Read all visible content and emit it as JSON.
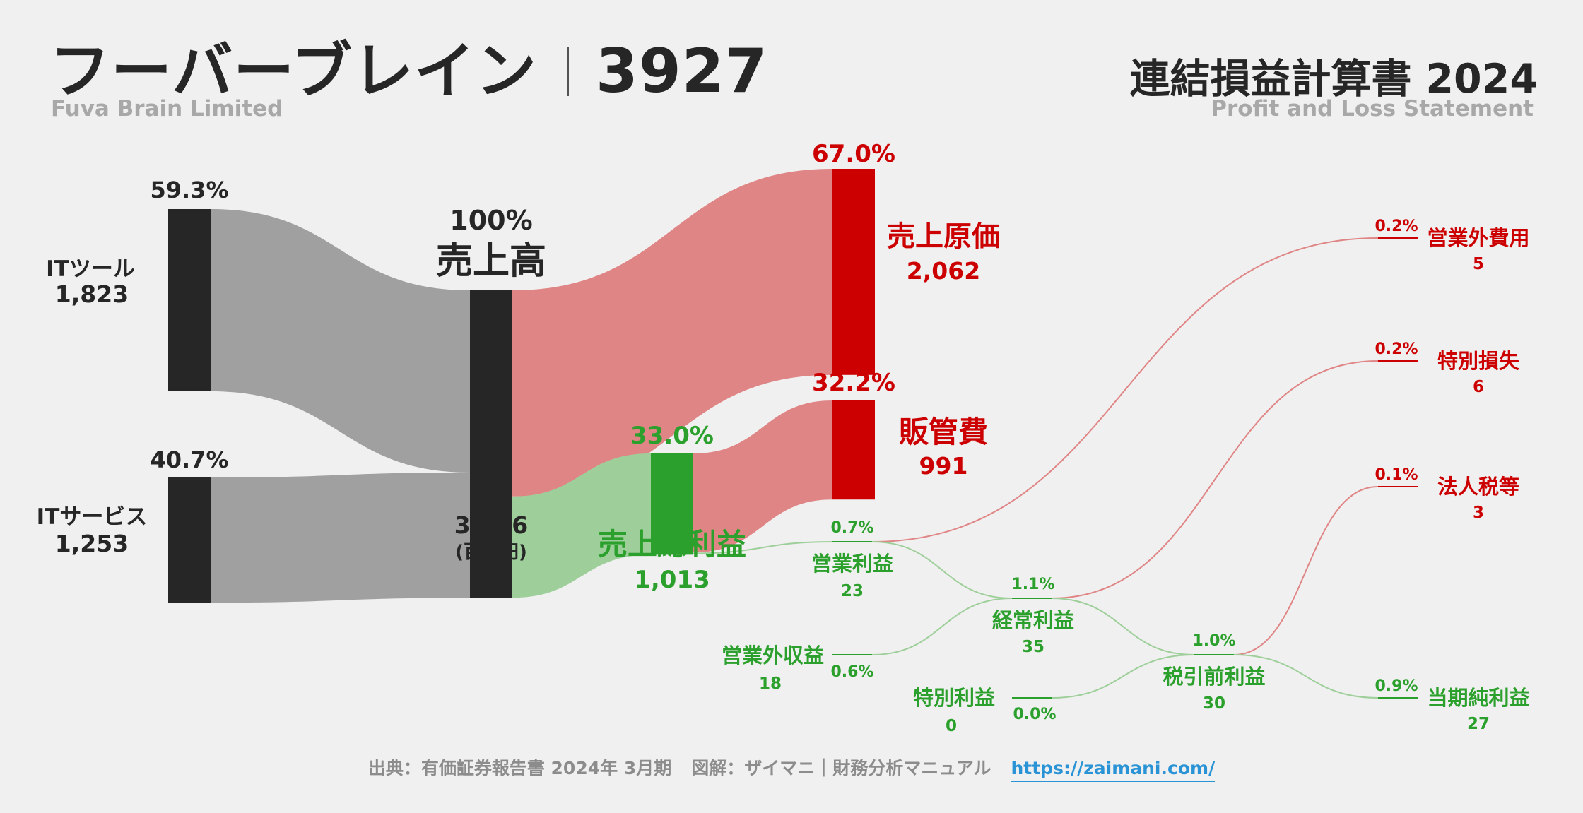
{
  "header": {
    "company": "フーバーブレイン",
    "code": "3927",
    "company_en": "Fuva Brain Limited",
    "statement": "連結損益計算書 2024",
    "statement_en": "Profit and Loss Statement"
  },
  "footer": {
    "source": "出典：有価証券報告書 2024年 3月期",
    "credit": "図解：ザイマニ｜財務分析マニュアル",
    "url": "https://zaimani.com/"
  },
  "colors": {
    "dark": "#262626",
    "gray_flow": "#a0a0a0",
    "red": "#cc0000",
    "red_flow": "#e08585",
    "green": "#2ca02c",
    "green_flow": "#9ecf9a",
    "muted": "#a8a8a8",
    "link": "#2a93d5"
  },
  "chart_data": {
    "type": "sankey",
    "unit": "(百万円)",
    "nodes": [
      {
        "id": "it_tools",
        "name": "ITツール",
        "value": 1823,
        "value_label": "1,823",
        "pct": "59.3%",
        "color": "dark"
      },
      {
        "id": "it_services",
        "name": "ITサービス",
        "value": 1253,
        "value_label": "1,253",
        "pct": "40.7%",
        "color": "dark"
      },
      {
        "id": "revenue",
        "name": "売上高",
        "value": 3076,
        "value_label": "3,076",
        "pct": "100%",
        "color": "dark"
      },
      {
        "id": "cogs",
        "name": "売上原価",
        "value": 2062,
        "value_label": "2,062",
        "pct": "67.0%",
        "color": "red"
      },
      {
        "id": "gross_profit",
        "name": "売上総利益",
        "value": 1013,
        "value_label": "1,013",
        "pct": "33.0%",
        "color": "green"
      },
      {
        "id": "sga",
        "name": "販管費",
        "value": 991,
        "value_label": "991",
        "pct": "32.2%",
        "color": "red"
      },
      {
        "id": "operating_profit",
        "name": "営業利益",
        "value": 23,
        "value_label": "23",
        "pct": "0.7%",
        "color": "green"
      },
      {
        "id": "non_op_expense",
        "name": "営業外費用",
        "value": 5,
        "value_label": "5",
        "pct": "0.2%",
        "color": "red"
      },
      {
        "id": "non_op_income",
        "name": "営業外収益",
        "value": 18,
        "value_label": "18",
        "pct": "0.6%",
        "color": "green"
      },
      {
        "id": "ordinary_profit",
        "name": "経常利益",
        "value": 35,
        "value_label": "35",
        "pct": "1.1%",
        "color": "green"
      },
      {
        "id": "extraordinary_loss",
        "name": "特別損失",
        "value": 6,
        "value_label": "6",
        "pct": "0.2%",
        "color": "red"
      },
      {
        "id": "extraordinary_income",
        "name": "特別利益",
        "value": 0,
        "value_label": "0",
        "pct": "0.0%",
        "color": "green"
      },
      {
        "id": "pretax_profit",
        "name": "税引前利益",
        "value": 30,
        "value_label": "30",
        "pct": "1.0%",
        "color": "green"
      },
      {
        "id": "income_tax",
        "name": "法人税等",
        "value": 3,
        "value_label": "3",
        "pct": "0.1%",
        "color": "red"
      },
      {
        "id": "net_income",
        "name": "当期純利益",
        "value": 27,
        "value_label": "27",
        "pct": "0.9%",
        "color": "green"
      }
    ],
    "links": [
      {
        "source": "it_tools",
        "target": "revenue",
        "value": 1823
      },
      {
        "source": "it_services",
        "target": "revenue",
        "value": 1253
      },
      {
        "source": "revenue",
        "target": "cogs",
        "value": 2062
      },
      {
        "source": "revenue",
        "target": "gross_profit",
        "value": 1013
      },
      {
        "source": "gross_profit",
        "target": "sga",
        "value": 991
      },
      {
        "source": "gross_profit",
        "target": "operating_profit",
        "value": 23
      },
      {
        "source": "operating_profit",
        "target": "non_op_expense",
        "value": 5
      },
      {
        "source": "operating_profit",
        "target": "ordinary_profit",
        "value": 23
      },
      {
        "source": "non_op_income",
        "target": "ordinary_profit",
        "value": 18
      },
      {
        "source": "ordinary_profit",
        "target": "extraordinary_loss",
        "value": 6
      },
      {
        "source": "ordinary_profit",
        "target": "pretax_profit",
        "value": 30
      },
      {
        "source": "extraordinary_income",
        "target": "pretax_profit",
        "value": 0
      },
      {
        "source": "pretax_profit",
        "target": "income_tax",
        "value": 3
      },
      {
        "source": "pretax_profit",
        "target": "net_income",
        "value": 27
      }
    ]
  }
}
